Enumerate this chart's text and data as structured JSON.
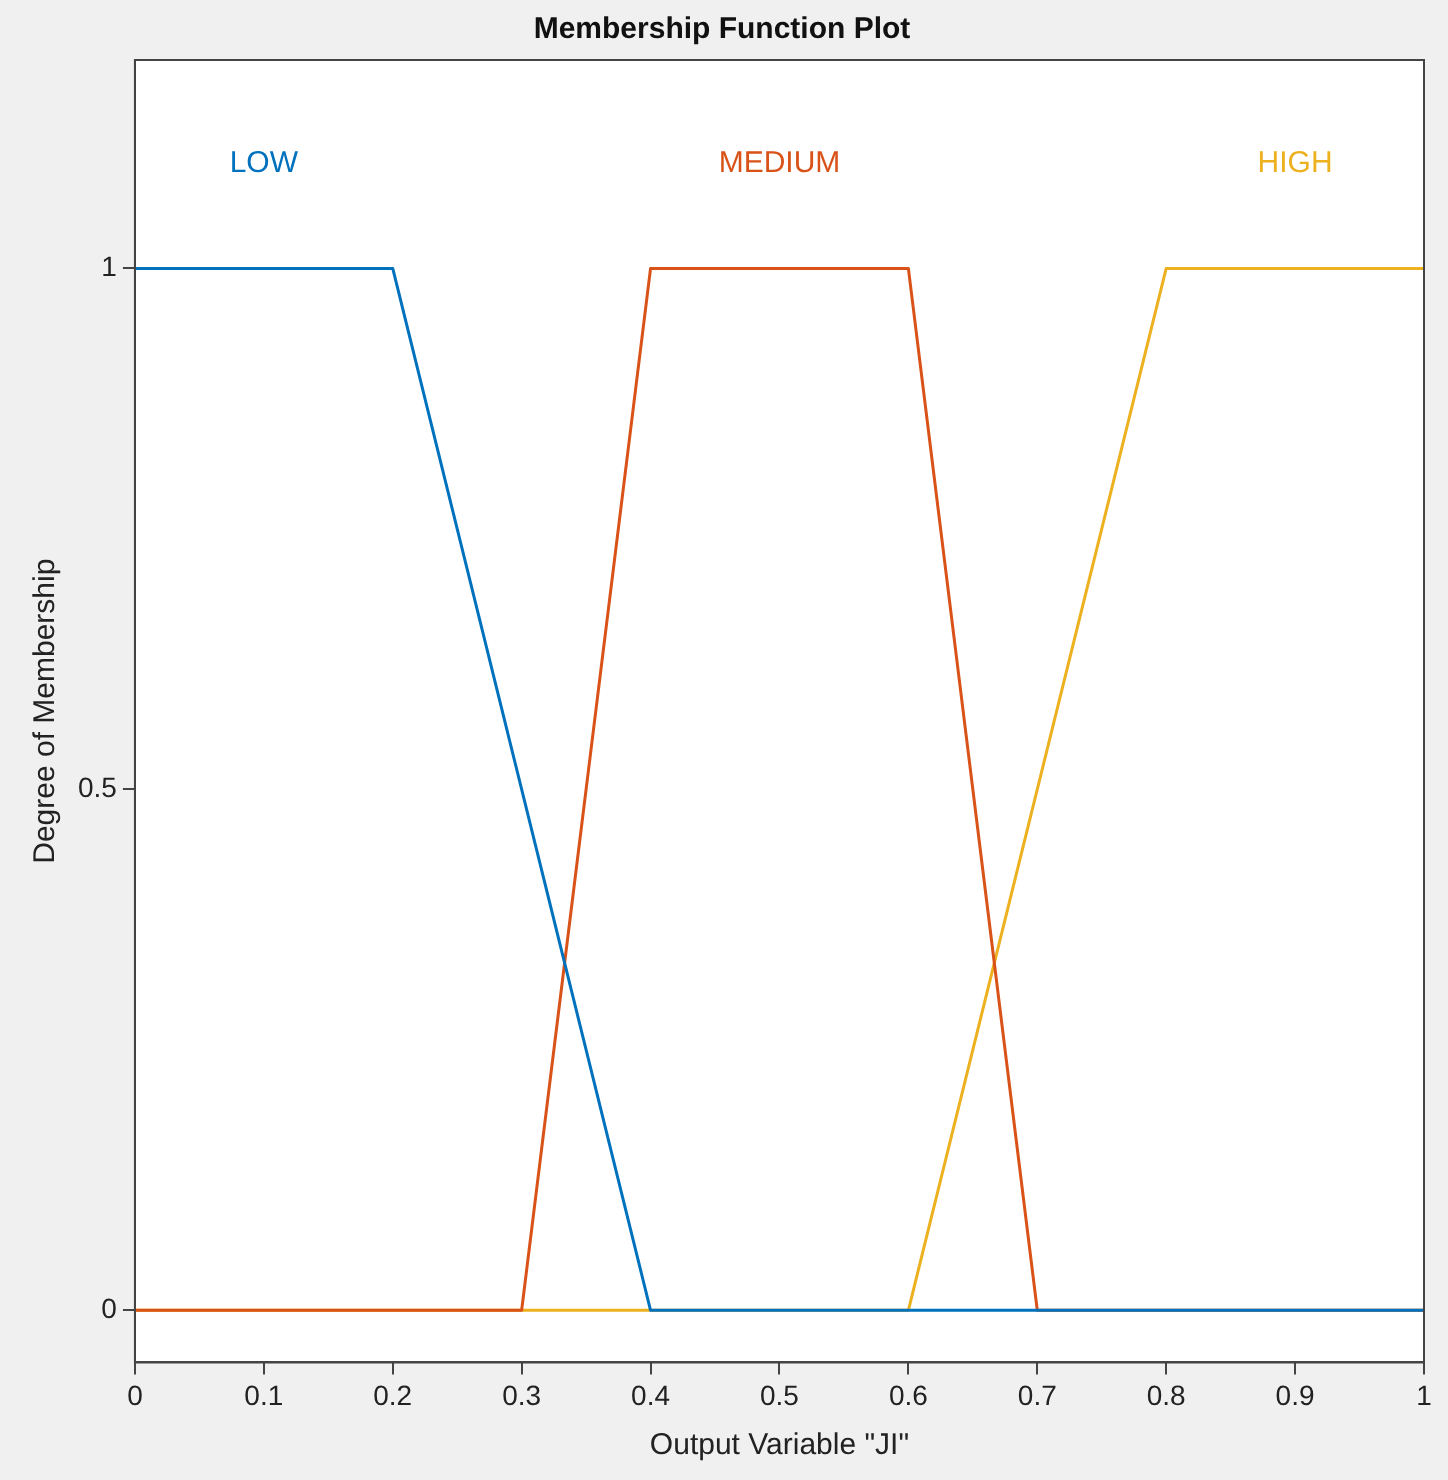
{
  "chart_data": {
    "type": "line",
    "title": "Membership Function Plot",
    "xlabel": "Output Variable \"JI\"",
    "ylabel": "Degree of Membership",
    "xlim": [
      0,
      1
    ],
    "ylim": [
      -0.05,
      1.2
    ],
    "xticks": [
      0,
      0.1,
      0.2,
      0.3,
      0.4,
      0.5,
      0.6,
      0.7,
      0.8,
      0.9,
      1
    ],
    "yticks": [
      0,
      0.5,
      1
    ],
    "series": [
      {
        "name": "LOW",
        "color": "#0072bd",
        "x": [
          0,
          0.2,
          0.4,
          1
        ],
        "values": [
          1,
          1,
          0,
          0
        ]
      },
      {
        "name": "MEDIUM",
        "color": "#d95319",
        "x": [
          0,
          0.3,
          0.4,
          0.6,
          0.7,
          1
        ],
        "values": [
          0,
          0,
          1,
          1,
          0,
          0
        ]
      },
      {
        "name": "HIGH",
        "color": "#edb120",
        "x": [
          0,
          0.6,
          0.8,
          1
        ],
        "values": [
          0,
          0,
          1,
          1
        ]
      }
    ],
    "grid": false,
    "legend": false,
    "marker": "none",
    "line_style": "solid"
  }
}
